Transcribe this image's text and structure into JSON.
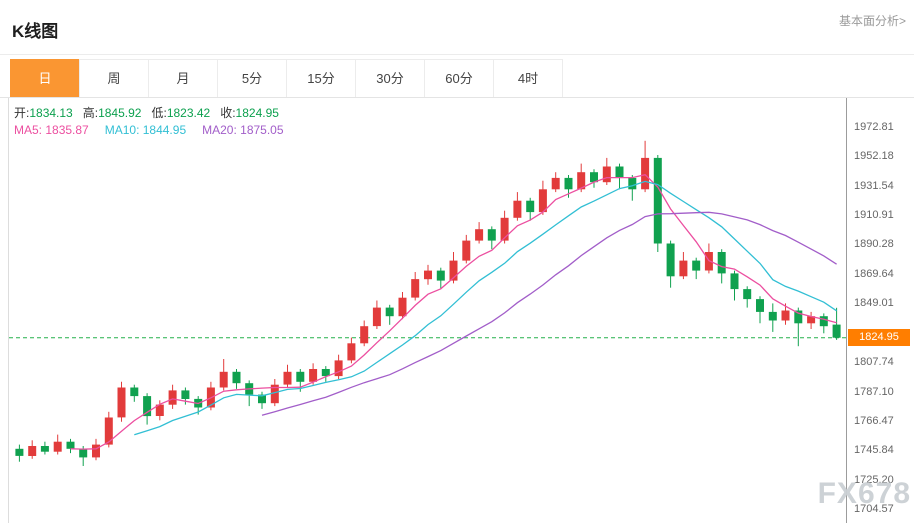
{
  "header": {
    "title": "K线图",
    "link": "基本面分析>"
  },
  "tabs": [
    {
      "id": "day",
      "label": "日",
      "active": true
    },
    {
      "id": "week",
      "label": "周",
      "active": false
    },
    {
      "id": "month",
      "label": "月",
      "active": false
    },
    {
      "id": "5min",
      "label": "5分",
      "active": false
    },
    {
      "id": "15min",
      "label": "15分",
      "active": false
    },
    {
      "id": "30min",
      "label": "30分",
      "active": false
    },
    {
      "id": "60min",
      "label": "60分",
      "active": false
    },
    {
      "id": "4hour",
      "label": "4时",
      "active": false
    }
  ],
  "tab_active_color": "#fa9632",
  "legend": {
    "ohlc_value_color": "#0ca04e",
    "ohlc": [
      {
        "id": "open",
        "label": "开:",
        "value": "1834.13"
      },
      {
        "id": "high",
        "label": "高:",
        "value": "1845.92"
      },
      {
        "id": "low",
        "label": "低:",
        "value": "1823.42"
      },
      {
        "id": "close",
        "label": "收:",
        "value": "1824.95"
      }
    ],
    "ma": [
      {
        "id": "ma5",
        "label": "MA5:",
        "value": "1835.87",
        "color": "#ec4fa0"
      },
      {
        "id": "ma10",
        "label": "MA10:",
        "value": "1844.95",
        "color": "#32bfd4"
      },
      {
        "id": "ma20",
        "label": "MA20:",
        "value": "1875.05",
        "color": "#a25ec9"
      }
    ]
  },
  "watermark": "FX678",
  "chart_data": {
    "type": "candlestick",
    "title": "K线图",
    "interval": "日",
    "ohlc_display": {
      "open": 1834.13,
      "high": 1845.92,
      "low": 1823.42,
      "close": 1824.95
    },
    "ma_display": {
      "ma5": 1835.87,
      "ma10": 1844.95,
      "ma20": 1875.05
    },
    "current_price": 1824.95,
    "current_price_label": "1824.95",
    "price_tag_color": "#ff7e00",
    "price_line_color": "#24b04a",
    "up_color": "#e23b3b",
    "down_color": "#10a14f",
    "ma_colors": {
      "ma5": "#ec4fa0",
      "ma10": "#32bfd4",
      "ma20": "#a25ec9"
    },
    "ylim": [
      1695,
      1993
    ],
    "y_ticks": [
      1972.81,
      1952.18,
      1931.54,
      1910.91,
      1890.28,
      1869.64,
      1849.01,
      1807.74,
      1787.1,
      1766.47,
      1745.84,
      1725.2,
      1704.57
    ],
    "grid": false,
    "legend_position": "top-left",
    "candles_format": [
      "open",
      "high",
      "low",
      "close"
    ],
    "candles": [
      [
        1747,
        1750,
        1738,
        1742
      ],
      [
        1742,
        1753,
        1740,
        1749
      ],
      [
        1749,
        1752,
        1743,
        1745
      ],
      [
        1745,
        1757,
        1743,
        1752
      ],
      [
        1752,
        1754,
        1744,
        1747
      ],
      [
        1747,
        1749,
        1735,
        1741
      ],
      [
        1741,
        1754,
        1739,
        1750
      ],
      [
        1750,
        1773,
        1748,
        1769
      ],
      [
        1769,
        1794,
        1766,
        1790
      ],
      [
        1790,
        1792,
        1780,
        1784
      ],
      [
        1784,
        1786,
        1764,
        1770
      ],
      [
        1770,
        1781,
        1767,
        1778
      ],
      [
        1778,
        1792,
        1775,
        1788
      ],
      [
        1788,
        1790,
        1778,
        1782
      ],
      [
        1782,
        1784,
        1771,
        1776
      ],
      [
        1776,
        1794,
        1774,
        1790
      ],
      [
        1790,
        1810,
        1788,
        1801
      ],
      [
        1801,
        1803,
        1789,
        1793
      ],
      [
        1793,
        1795,
        1777,
        1785
      ],
      [
        1785,
        1787,
        1775,
        1779
      ],
      [
        1779,
        1796,
        1777,
        1792
      ],
      [
        1792,
        1806,
        1790,
        1801
      ],
      [
        1801,
        1803,
        1787,
        1794
      ],
      [
        1794,
        1807,
        1792,
        1803
      ],
      [
        1803,
        1805,
        1794,
        1798
      ],
      [
        1798,
        1813,
        1796,
        1809
      ],
      [
        1809,
        1825,
        1807,
        1821
      ],
      [
        1821,
        1837,
        1819,
        1833
      ],
      [
        1833,
        1851,
        1831,
        1846
      ],
      [
        1846,
        1848,
        1834,
        1840
      ],
      [
        1840,
        1857,
        1838,
        1853
      ],
      [
        1853,
        1871,
        1851,
        1866
      ],
      [
        1866,
        1876,
        1862,
        1872
      ],
      [
        1872,
        1874,
        1859,
        1865
      ],
      [
        1865,
        1885,
        1863,
        1879
      ],
      [
        1879,
        1897,
        1877,
        1893
      ],
      [
        1893,
        1906,
        1891,
        1901
      ],
      [
        1901,
        1903,
        1887,
        1893
      ],
      [
        1893,
        1914,
        1891,
        1909
      ],
      [
        1909,
        1927,
        1907,
        1921
      ],
      [
        1921,
        1923,
        1907,
        1913
      ],
      [
        1913,
        1935,
        1911,
        1929
      ],
      [
        1929,
        1941,
        1927,
        1937
      ],
      [
        1937,
        1939,
        1923,
        1929
      ],
      [
        1929,
        1947,
        1927,
        1941
      ],
      [
        1941,
        1943,
        1930,
        1934
      ],
      [
        1934,
        1951,
        1932,
        1945
      ],
      [
        1945,
        1947,
        1929,
        1937
      ],
      [
        1937,
        1939,
        1921,
        1929
      ],
      [
        1929,
        1963,
        1927,
        1951
      ],
      [
        1951,
        1953,
        1885,
        1891
      ],
      [
        1891,
        1893,
        1860,
        1868
      ],
      [
        1868,
        1885,
        1866,
        1879
      ],
      [
        1879,
        1881,
        1866,
        1872
      ],
      [
        1872,
        1891,
        1870,
        1885
      ],
      [
        1885,
        1887,
        1863,
        1870
      ],
      [
        1870,
        1872,
        1851,
        1859
      ],
      [
        1859,
        1861,
        1846,
        1852
      ],
      [
        1852,
        1854,
        1835,
        1843
      ],
      [
        1843,
        1849,
        1829,
        1837
      ],
      [
        1837,
        1849,
        1834,
        1844
      ],
      [
        1844,
        1846,
        1819,
        1835
      ],
      [
        1835,
        1843,
        1831,
        1840
      ],
      [
        1840,
        1842,
        1828,
        1833
      ],
      [
        1834.13,
        1845.92,
        1823.42,
        1824.95
      ]
    ]
  }
}
